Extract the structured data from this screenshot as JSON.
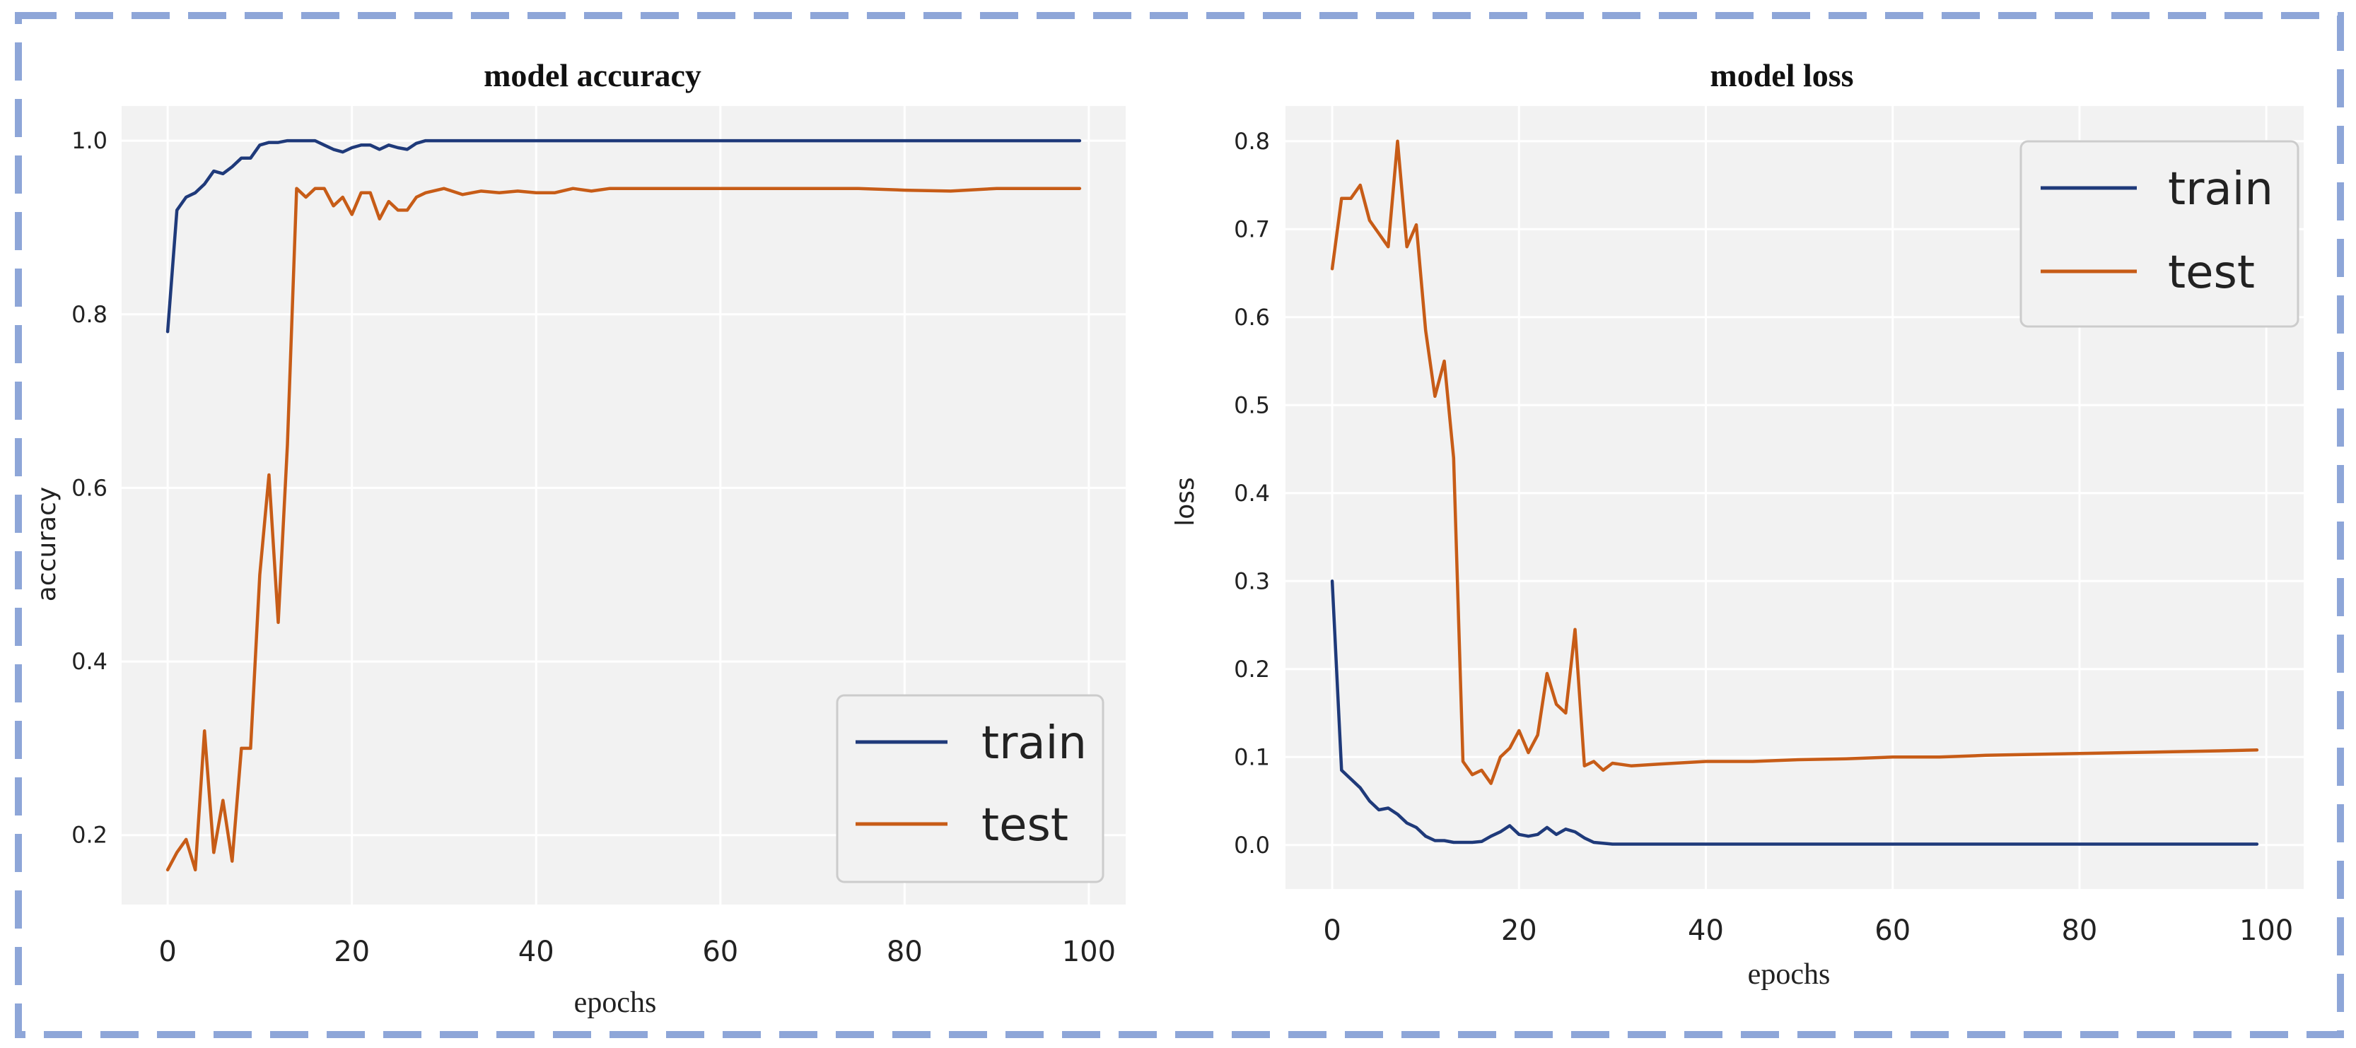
{
  "colors": {
    "border": "#8ea6d8",
    "plot_bg": "#f2f2f2",
    "grid": "#ffffff",
    "train": "#1f3a7a",
    "test": "#c75c17"
  },
  "chart_data": [
    {
      "id": "accuracy",
      "type": "line",
      "title": "model accuracy",
      "xlabel": "epochs",
      "ylabel": "accuracy",
      "xlim": [
        -5,
        104
      ],
      "ylim": [
        0.12,
        1.04
      ],
      "xticks": [
        0,
        20,
        40,
        60,
        80,
        100
      ],
      "yticks": [
        0.2,
        0.4,
        0.6,
        0.8,
        1.0
      ],
      "ytick_labels": [
        "0.2",
        "0.4",
        "0.6",
        "0.8",
        "1.0"
      ],
      "grid": true,
      "legend_position": "lower-right",
      "series": [
        {
          "name": "train",
          "color_key": "train",
          "points": [
            [
              0,
              0.78
            ],
            [
              1,
              0.92
            ],
            [
              2,
              0.935
            ],
            [
              3,
              0.94
            ],
            [
              4,
              0.95
            ],
            [
              5,
              0.965
            ],
            [
              6,
              0.962
            ],
            [
              7,
              0.97
            ],
            [
              8,
              0.98
            ],
            [
              9,
              0.98
            ],
            [
              10,
              0.995
            ],
            [
              11,
              0.998
            ],
            [
              12,
              0.998
            ],
            [
              13,
              1.0
            ],
            [
              14,
              1.0
            ],
            [
              15,
              1.0
            ],
            [
              16,
              1.0
            ],
            [
              17,
              0.995
            ],
            [
              18,
              0.99
            ],
            [
              19,
              0.987
            ],
            [
              20,
              0.992
            ],
            [
              21,
              0.995
            ],
            [
              22,
              0.995
            ],
            [
              23,
              0.99
            ],
            [
              24,
              0.995
            ],
            [
              25,
              0.992
            ],
            [
              26,
              0.99
            ],
            [
              27,
              0.997
            ],
            [
              28,
              1.0
            ],
            [
              30,
              1.0
            ],
            [
              40,
              1.0
            ],
            [
              50,
              1.0
            ],
            [
              60,
              1.0
            ],
            [
              70,
              1.0
            ],
            [
              80,
              1.0
            ],
            [
              90,
              1.0
            ],
            [
              99,
              1.0
            ]
          ]
        },
        {
          "name": "test",
          "color_key": "test",
          "points": [
            [
              0,
              0.16
            ],
            [
              1,
              0.18
            ],
            [
              2,
              0.195
            ],
            [
              3,
              0.16
            ],
            [
              4,
              0.32
            ],
            [
              5,
              0.18
            ],
            [
              6,
              0.24
            ],
            [
              7,
              0.17
            ],
            [
              8,
              0.3
            ],
            [
              9,
              0.3
            ],
            [
              10,
              0.5
            ],
            [
              11,
              0.615
            ],
            [
              12,
              0.445
            ],
            [
              13,
              0.65
            ],
            [
              14,
              0.945
            ],
            [
              15,
              0.935
            ],
            [
              16,
              0.945
            ],
            [
              17,
              0.945
            ],
            [
              18,
              0.925
            ],
            [
              19,
              0.935
            ],
            [
              20,
              0.915
            ],
            [
              21,
              0.94
            ],
            [
              22,
              0.94
            ],
            [
              23,
              0.91
            ],
            [
              24,
              0.93
            ],
            [
              25,
              0.92
            ],
            [
              26,
              0.92
            ],
            [
              27,
              0.935
            ],
            [
              28,
              0.94
            ],
            [
              30,
              0.945
            ],
            [
              32,
              0.938
            ],
            [
              34,
              0.942
            ],
            [
              36,
              0.94
            ],
            [
              38,
              0.942
            ],
            [
              40,
              0.94
            ],
            [
              42,
              0.94
            ],
            [
              44,
              0.945
            ],
            [
              46,
              0.942
            ],
            [
              48,
              0.945
            ],
            [
              50,
              0.945
            ],
            [
              55,
              0.945
            ],
            [
              60,
              0.945
            ],
            [
              65,
              0.945
            ],
            [
              70,
              0.945
            ],
            [
              75,
              0.945
            ],
            [
              80,
              0.943
            ],
            [
              85,
              0.942
            ],
            [
              90,
              0.945
            ],
            [
              95,
              0.945
            ],
            [
              99,
              0.945
            ]
          ]
        }
      ]
    },
    {
      "id": "loss",
      "type": "line",
      "title": "model loss",
      "xlabel": "epochs",
      "ylabel": "loss",
      "xlim": [
        -5,
        104
      ],
      "ylim": [
        -0.05,
        0.84
      ],
      "xticks": [
        0,
        20,
        40,
        60,
        80,
        100
      ],
      "yticks": [
        0.0,
        0.1,
        0.2,
        0.3,
        0.4,
        0.5,
        0.6,
        0.7,
        0.8
      ],
      "ytick_labels": [
        "0.0",
        "0.1",
        "0.2",
        "0.3",
        "0.4",
        "0.5",
        "0.6",
        "0.7",
        "0.8"
      ],
      "grid": true,
      "legend_position": "upper-right",
      "series": [
        {
          "name": "train",
          "color_key": "train",
          "points": [
            [
              0,
              0.3
            ],
            [
              1,
              0.085
            ],
            [
              2,
              0.075
            ],
            [
              3,
              0.065
            ],
            [
              4,
              0.05
            ],
            [
              5,
              0.04
            ],
            [
              6,
              0.042
            ],
            [
              7,
              0.035
            ],
            [
              8,
              0.025
            ],
            [
              9,
              0.02
            ],
            [
              10,
              0.01
            ],
            [
              11,
              0.005
            ],
            [
              12,
              0.005
            ],
            [
              13,
              0.003
            ],
            [
              14,
              0.003
            ],
            [
              15,
              0.003
            ],
            [
              16,
              0.004
            ],
            [
              17,
              0.01
            ],
            [
              18,
              0.015
            ],
            [
              19,
              0.022
            ],
            [
              20,
              0.012
            ],
            [
              21,
              0.01
            ],
            [
              22,
              0.012
            ],
            [
              23,
              0.02
            ],
            [
              24,
              0.012
            ],
            [
              25,
              0.018
            ],
            [
              26,
              0.015
            ],
            [
              27,
              0.008
            ],
            [
              28,
              0.003
            ],
            [
              30,
              0.001
            ],
            [
              40,
              0.001
            ],
            [
              50,
              0.001
            ],
            [
              60,
              0.001
            ],
            [
              70,
              0.001
            ],
            [
              80,
              0.001
            ],
            [
              90,
              0.001
            ],
            [
              99,
              0.001
            ]
          ]
        },
        {
          "name": "test",
          "color_key": "test",
          "points": [
            [
              0,
              0.655
            ],
            [
              1,
              0.735
            ],
            [
              2,
              0.735
            ],
            [
              3,
              0.75
            ],
            [
              4,
              0.71
            ],
            [
              5,
              0.695
            ],
            [
              6,
              0.68
            ],
            [
              7,
              0.8
            ],
            [
              8,
              0.68
            ],
            [
              9,
              0.705
            ],
            [
              10,
              0.585
            ],
            [
              11,
              0.51
            ],
            [
              12,
              0.55
            ],
            [
              13,
              0.44
            ],
            [
              14,
              0.095
            ],
            [
              15,
              0.08
            ],
            [
              16,
              0.085
            ],
            [
              17,
              0.07
            ],
            [
              18,
              0.1
            ],
            [
              19,
              0.11
            ],
            [
              20,
              0.13
            ],
            [
              21,
              0.105
            ],
            [
              22,
              0.125
            ],
            [
              23,
              0.195
            ],
            [
              24,
              0.16
            ],
            [
              25,
              0.15
            ],
            [
              26,
              0.245
            ],
            [
              27,
              0.09
            ],
            [
              28,
              0.095
            ],
            [
              29,
              0.085
            ],
            [
              30,
              0.093
            ],
            [
              32,
              0.09
            ],
            [
              35,
              0.092
            ],
            [
              40,
              0.095
            ],
            [
              45,
              0.095
            ],
            [
              50,
              0.097
            ],
            [
              55,
              0.098
            ],
            [
              60,
              0.1
            ],
            [
              65,
              0.1
            ],
            [
              70,
              0.102
            ],
            [
              75,
              0.103
            ],
            [
              80,
              0.104
            ],
            [
              85,
              0.105
            ],
            [
              90,
              0.106
            ],
            [
              95,
              0.107
            ],
            [
              99,
              0.108
            ]
          ]
        }
      ]
    }
  ]
}
